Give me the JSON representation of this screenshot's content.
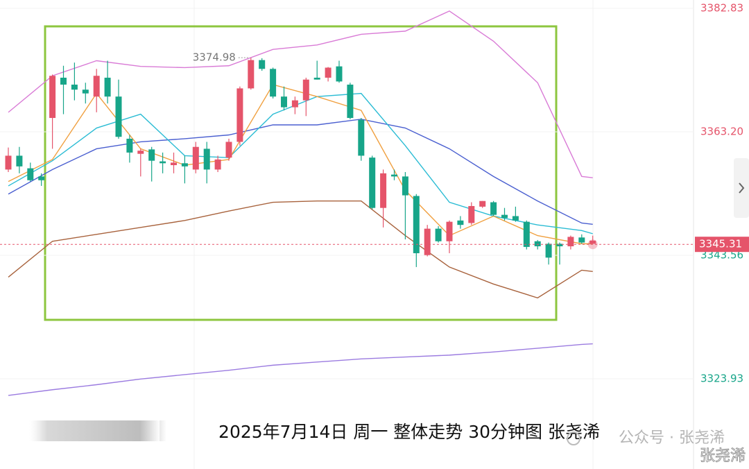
{
  "chart_data": {
    "type": "candlestick",
    "caption": "2025年7月14日 周一 整体走势 30分钟图 张尧浠",
    "watermark": "公众号 · 张尧浠",
    "watermark_name": "张尧浠",
    "up_color": "#e5546a",
    "down_color": "#17a589",
    "ylim": [
      3309.6,
      3384.15
    ],
    "yticks": [
      3382.83,
      {
        "value": 3363.2,
        "label": "3363.20"
      },
      3343.56,
      3323.93
    ],
    "last_price": 3345.31,
    "open": [
      3357.2,
      3359.4,
      3357.4,
      3356.1,
      3365.4,
      3371.8,
      3370.7,
      3369.9,
      3368.8,
      3371.8,
      3368.8,
      3362.1,
      3359.7,
      3360.4,
      3358.5,
      3357.9,
      3358.2,
      3357.2,
      3360.5,
      3357.2,
      3359.1,
      3361.6,
      3370.1,
      3374.6,
      3373.2,
      3368.8,
      3367.1,
      3368.2,
      3371.8,
      3371.8,
      3373.6,
      3370.7,
      3365.1,
      3359.1,
      3351.1,
      3356.4,
      3356.1,
      3353.0,
      3343.6,
      3347.8,
      3345.8,
      3349.1,
      3348.7,
      3351.3,
      3352.0,
      3350.0,
      3349.8,
      3348.9,
      3345.8,
      3345.4,
      3345.4,
      3345.0,
      3346.4,
      3345.4
    ],
    "high": [
      3360.7,
      3360.8,
      3358.3,
      3356.6,
      3372.3,
      3373.7,
      3374.2,
      3371.0,
      3373.2,
      3374.5,
      3371.5,
      3362.7,
      3360.5,
      3360.8,
      3359.9,
      3359.9,
      3359.4,
      3361.6,
      3361.6,
      3359.4,
      3362.1,
      3370.4,
      3374.98,
      3374.9,
      3373.4,
      3370.4,
      3368.8,
      3371.8,
      3374.5,
      3373.5,
      3374.5,
      3371.0,
      3365.4,
      3359.4,
      3357.2,
      3357.2,
      3356.8,
      3353.3,
      3348.4,
      3348.2,
      3349.1,
      3349.8,
      3352.0,
      3352.2,
      3352.2,
      3351.1,
      3351.3,
      3349.1,
      3346.0,
      3345.6,
      3345.6,
      3346.7,
      3346.9,
      3346.7
    ],
    "low": [
      3356.8,
      3356.6,
      3355.3,
      3354.6,
      3360.5,
      3366.0,
      3368.2,
      3367.7,
      3366.3,
      3367.7,
      3362.1,
      3358.3,
      3356.1,
      3355.3,
      3356.6,
      3356.6,
      3355.0,
      3356.6,
      3355.0,
      3356.8,
      3358.6,
      3361.0,
      3369.9,
      3372.9,
      3368.5,
      3366.6,
      3366.0,
      3365.7,
      3371.5,
      3371.2,
      3371.0,
      3365.2,
      3358.6,
      3350.9,
      3348.0,
      3355.5,
      3346.1,
      3341.7,
      3343.4,
      3345.6,
      3343.9,
      3347.8,
      3348.4,
      3351.1,
      3349.8,
      3349.1,
      3348.9,
      3344.5,
      3344.5,
      3342.1,
      3342.1,
      3344.5,
      3345.4,
      3345.4
    ],
    "close": [
      3359.4,
      3357.7,
      3355.5,
      3355.5,
      3372.1,
      3370.7,
      3369.9,
      3369.3,
      3372.1,
      3368.8,
      3362.4,
      3359.9,
      3360.2,
      3358.6,
      3358.2,
      3358.3,
      3357.7,
      3360.8,
      3357.2,
      3358.8,
      3361.6,
      3370.1,
      3374.6,
      3373.2,
      3368.8,
      3367.1,
      3368.2,
      3371.5,
      3371.5,
      3373.4,
      3371.2,
      3365.4,
      3359.4,
      3351.1,
      3356.6,
      3356.1,
      3353.1,
      3343.9,
      3347.8,
      3345.8,
      3348.9,
      3348.4,
      3351.4,
      3352.2,
      3350.0,
      3349.5,
      3349.1,
      3344.9,
      3345.0,
      3343.2,
      3345.0,
      3346.5,
      3345.6,
      3345.9
    ],
    "overlays": [
      {
        "color": "#9b7be0",
        "x": [
          0,
          4,
          8,
          12,
          16,
          20,
          24,
          28,
          32,
          36,
          40,
          44,
          48,
          52,
          53
        ],
        "values": [
          3321.3,
          3322.2,
          3323.0,
          3323.9,
          3324.6,
          3325.3,
          3326.1,
          3326.6,
          3327.1,
          3327.4,
          3327.7,
          3328.2,
          3328.8,
          3329.4,
          3329.5
        ]
      },
      {
        "color": "#d97bd6",
        "x": [
          0,
          4,
          8,
          12,
          16,
          20,
          24,
          28,
          32,
          36,
          40,
          44,
          48,
          52,
          53
        ],
        "values": [
          3366.3,
          3372.1,
          3374.5,
          3373.6,
          3373.4,
          3373.7,
          3376.3,
          3377.0,
          3378.7,
          3379.2,
          3382.4,
          3377.6,
          3371.0,
          3356.1,
          3355.9
        ]
      },
      {
        "color": "#a8623c",
        "x": [
          0,
          4,
          8,
          12,
          16,
          20,
          24,
          28,
          32,
          36,
          40,
          44,
          48,
          52,
          53
        ],
        "values": [
          3340.1,
          3345.8,
          3346.9,
          3348.0,
          3349.1,
          3350.6,
          3352.0,
          3352.2,
          3352.2,
          3346.7,
          3341.7,
          3339.0,
          3336.8,
          3341.2,
          3341.0
        ]
      },
      {
        "color": "#4a5fd0",
        "x": [
          0,
          4,
          8,
          12,
          16,
          20,
          24,
          28,
          32,
          36,
          40,
          44,
          48,
          52,
          53
        ],
        "values": [
          3353.3,
          3357.2,
          3360.5,
          3361.6,
          3362.1,
          3362.7,
          3364.3,
          3364.3,
          3365.2,
          3363.8,
          3360.5,
          3356.1,
          3352.2,
          3348.7,
          3348.5
        ]
      },
      {
        "color": "#2bbcd4",
        "x": [
          0,
          4,
          8,
          12,
          16,
          20,
          24,
          28,
          32,
          36,
          40,
          44,
          48,
          52,
          53
        ],
        "values": [
          3354.6,
          3358.6,
          3363.8,
          3366.0,
          3359.4,
          3359.1,
          3366.0,
          3368.8,
          3369.3,
          3361.0,
          3352.0,
          3349.8,
          3348.4,
          3347.5,
          3347.0
        ]
      },
      {
        "color": "#f0a040",
        "x": [
          0,
          4,
          8,
          12,
          16,
          20,
          24,
          28,
          32,
          36,
          40,
          44,
          48,
          52,
          53
        ],
        "values": [
          3355.3,
          3358.8,
          3369.3,
          3360.5,
          3357.9,
          3358.8,
          3370.7,
          3368.8,
          3366.6,
          3353.9,
          3346.7,
          3349.8,
          3346.7,
          3345.4,
          3345.4
        ]
      }
    ]
  }
}
